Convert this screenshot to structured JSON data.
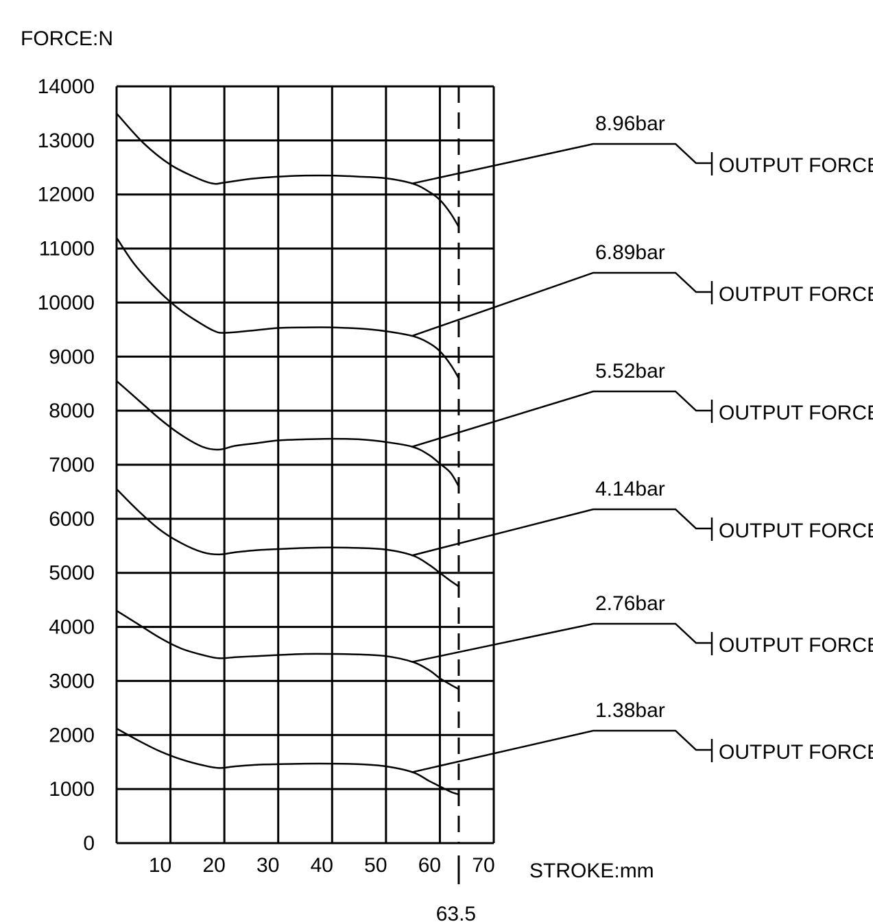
{
  "chart_data": {
    "type": "line",
    "ylabel": "FORCE:N",
    "xlabel": "STROKE:mm",
    "xlim": [
      0,
      70
    ],
    "ylim": [
      0,
      14000
    ],
    "x_ticks": [
      "10",
      "20",
      "30",
      "40",
      "50",
      "60",
      "70"
    ],
    "y_ticks": [
      "0",
      "1000",
      "2000",
      "3000",
      "4000",
      "5000",
      "6000",
      "7000",
      "8000",
      "9000",
      "10000",
      "11000",
      "12000",
      "13000",
      "14000"
    ],
    "grid": true,
    "marker": {
      "x": 63.5,
      "label": "63.5",
      "style": "dashed"
    },
    "series": [
      {
        "name": "8.96bar",
        "label": "OUTPUT FORCE",
        "label_anchor_x": 55,
        "x": [
          0,
          5,
          10,
          15,
          18,
          20,
          25,
          30,
          35,
          40,
          45,
          50,
          55,
          58,
          60,
          62,
          63.5
        ],
        "y": [
          13500,
          12950,
          12550,
          12300,
          12200,
          12220,
          12290,
          12330,
          12350,
          12350,
          12330,
          12300,
          12200,
          12050,
          11900,
          11650,
          11400
        ]
      },
      {
        "name": "6.89bar",
        "label": "OUTPUT FORCE",
        "label_anchor_x": 55,
        "x": [
          0,
          3,
          6,
          9,
          12,
          15,
          18,
          20,
          25,
          30,
          35,
          40,
          45,
          50,
          55,
          58,
          60,
          62,
          63.5
        ],
        "y": [
          11200,
          10750,
          10400,
          10100,
          9850,
          9650,
          9480,
          9440,
          9480,
          9530,
          9540,
          9540,
          9520,
          9470,
          9380,
          9250,
          9100,
          8850,
          8600
        ]
      },
      {
        "name": "5.52bar",
        "label": "OUTPUT FORCE",
        "label_anchor_x": 55,
        "x": [
          0,
          4,
          8,
          12,
          16,
          19,
          22,
          26,
          30,
          35,
          40,
          45,
          50,
          55,
          58,
          60,
          62,
          63.5
        ],
        "y": [
          8550,
          8200,
          7850,
          7550,
          7330,
          7280,
          7350,
          7400,
          7450,
          7470,
          7480,
          7470,
          7420,
          7330,
          7180,
          7020,
          6850,
          6600
        ]
      },
      {
        "name": "4.14bar",
        "label": "OUTPUT FORCE",
        "label_anchor_x": 55,
        "x": [
          0,
          4,
          8,
          12,
          16,
          19,
          22,
          26,
          30,
          35,
          40,
          45,
          50,
          55,
          58,
          60,
          62,
          63.5
        ],
        "y": [
          6550,
          6150,
          5800,
          5550,
          5380,
          5340,
          5380,
          5420,
          5440,
          5460,
          5470,
          5460,
          5430,
          5320,
          5150,
          5000,
          4850,
          4750
        ]
      },
      {
        "name": "2.76bar",
        "label": "OUTPUT FORCE",
        "label_anchor_x": 55,
        "x": [
          0,
          4,
          8,
          12,
          16,
          19,
          22,
          26,
          30,
          35,
          40,
          45,
          50,
          55,
          58,
          60,
          62,
          63.5
        ],
        "y": [
          4300,
          4050,
          3800,
          3600,
          3480,
          3420,
          3440,
          3460,
          3480,
          3500,
          3500,
          3490,
          3460,
          3350,
          3200,
          3050,
          2930,
          2850
        ]
      },
      {
        "name": "1.38bar",
        "label": "OUTPUT FORCE",
        "label_anchor_x": 55,
        "x": [
          0,
          4,
          8,
          12,
          16,
          19,
          22,
          26,
          30,
          35,
          40,
          45,
          50,
          55,
          58,
          60,
          62,
          63.5
        ],
        "y": [
          2120,
          1900,
          1700,
          1550,
          1440,
          1390,
          1420,
          1450,
          1460,
          1470,
          1470,
          1460,
          1420,
          1310,
          1150,
          1050,
          950,
          900
        ]
      }
    ]
  }
}
